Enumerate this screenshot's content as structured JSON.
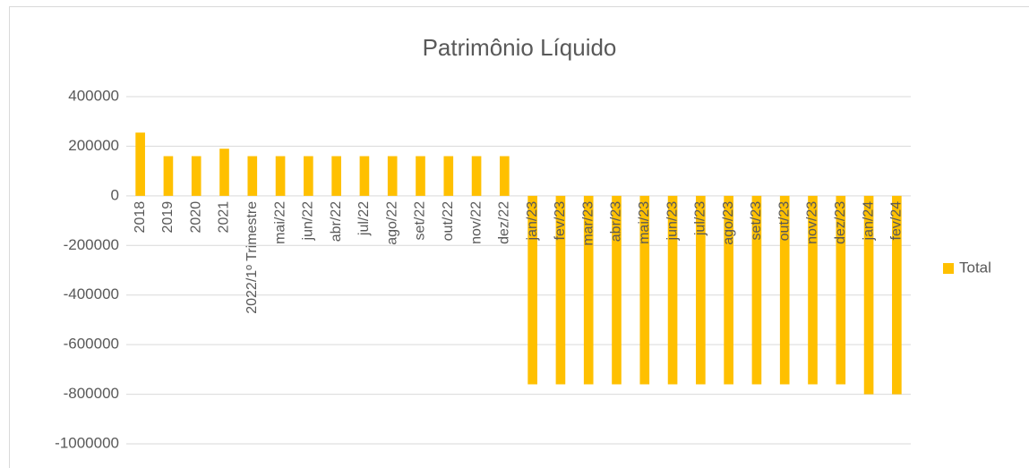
{
  "chart_data": {
    "type": "bar",
    "title": "Patrimônio Líquido",
    "categories": [
      "2018",
      "2019",
      "2020",
      "2021",
      "2022/1º Trimestre",
      "mai/22",
      "jun/22",
      "abr/22",
      "jul/22",
      "ago/22",
      "set/22",
      "out/22",
      "nov/22",
      "dez/22",
      "jan/23",
      "fev/23",
      "mar/23",
      "abr/23",
      "mai/23",
      "jun/23",
      "jul/23",
      "ago/23",
      "set/23",
      "out/23",
      "nov/23",
      "dez/23",
      "jan/24",
      "fev/24"
    ],
    "series": [
      {
        "name": "Total",
        "color": "#ffc000",
        "values": [
          255000,
          160000,
          160000,
          190000,
          160000,
          160000,
          160000,
          160000,
          160000,
          160000,
          160000,
          160000,
          160000,
          160000,
          -760000,
          -760000,
          -760000,
          -760000,
          -760000,
          -760000,
          -760000,
          -760000,
          -760000,
          -760000,
          -760000,
          -760000,
          -800000,
          -800000
        ]
      }
    ],
    "ylim": [
      -1000000,
      400000
    ],
    "yticks": [
      -1000000,
      -800000,
      -600000,
      -400000,
      -200000,
      0,
      200000,
      400000
    ],
    "grid": true,
    "legend": "right"
  }
}
